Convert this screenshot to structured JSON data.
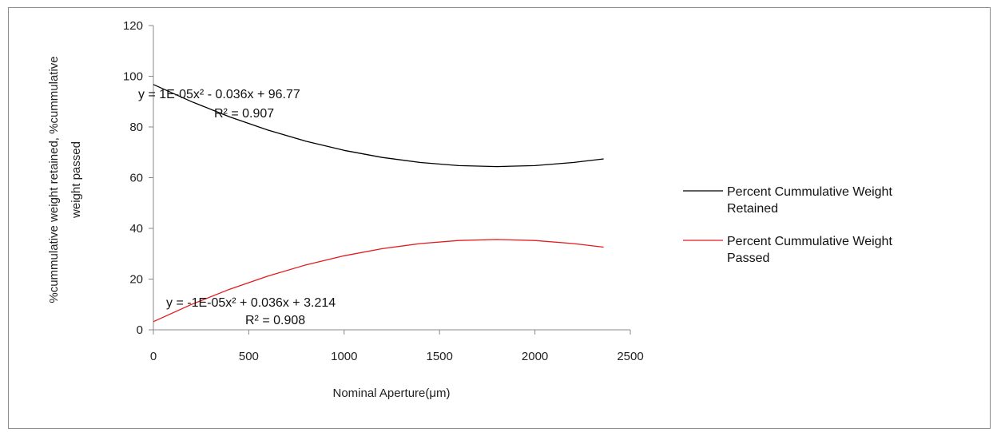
{
  "chart_data": {
    "type": "line",
    "xlabel": "Nominal Aperture(μm)",
    "ylabel_lines": [
      "%cummulative weight retained, %cummulative",
      "weight passed"
    ],
    "xlim": [
      0,
      2500
    ],
    "ylim": [
      0,
      120
    ],
    "xticks": [
      "0",
      "500",
      "1000",
      "1500",
      "2000",
      "2500"
    ],
    "yticks": [
      "0",
      "20",
      "40",
      "60",
      "80",
      "100",
      "120"
    ],
    "grid": false,
    "legend_position": "right",
    "series": [
      {
        "name_lines": [
          "Percent Cummulative Weight",
          "Retained"
        ],
        "color": "#000000",
        "x": [
          0,
          200,
          400,
          600,
          800,
          1000,
          1200,
          1400,
          1600,
          1800,
          2000,
          2200,
          2360
        ],
        "y": [
          96.77,
          89.97,
          83.97,
          78.77,
          74.37,
          70.77,
          67.97,
          65.97,
          64.77,
          64.37,
          64.77,
          65.97,
          67.39
        ],
        "trendline": {
          "equation": "y = 1E-05x² - 0.036x + 96.77",
          "r2": "R² = 0.907"
        }
      },
      {
        "name_lines": [
          "Percent Cummulative Weight",
          "Passed"
        ],
        "color": "#e41a1c",
        "x": [
          0,
          200,
          400,
          600,
          800,
          1000,
          1200,
          1400,
          1600,
          1800,
          2000,
          2200,
          2360
        ],
        "y": [
          3.21,
          10.01,
          16.01,
          21.21,
          25.61,
          29.21,
          32.01,
          34.01,
          35.21,
          35.61,
          35.21,
          34.01,
          32.59
        ],
        "trendline": {
          "equation": "y = -1E-05x² + 0.036x + 3.214",
          "r2": "R² = 0.908"
        }
      }
    ]
  }
}
